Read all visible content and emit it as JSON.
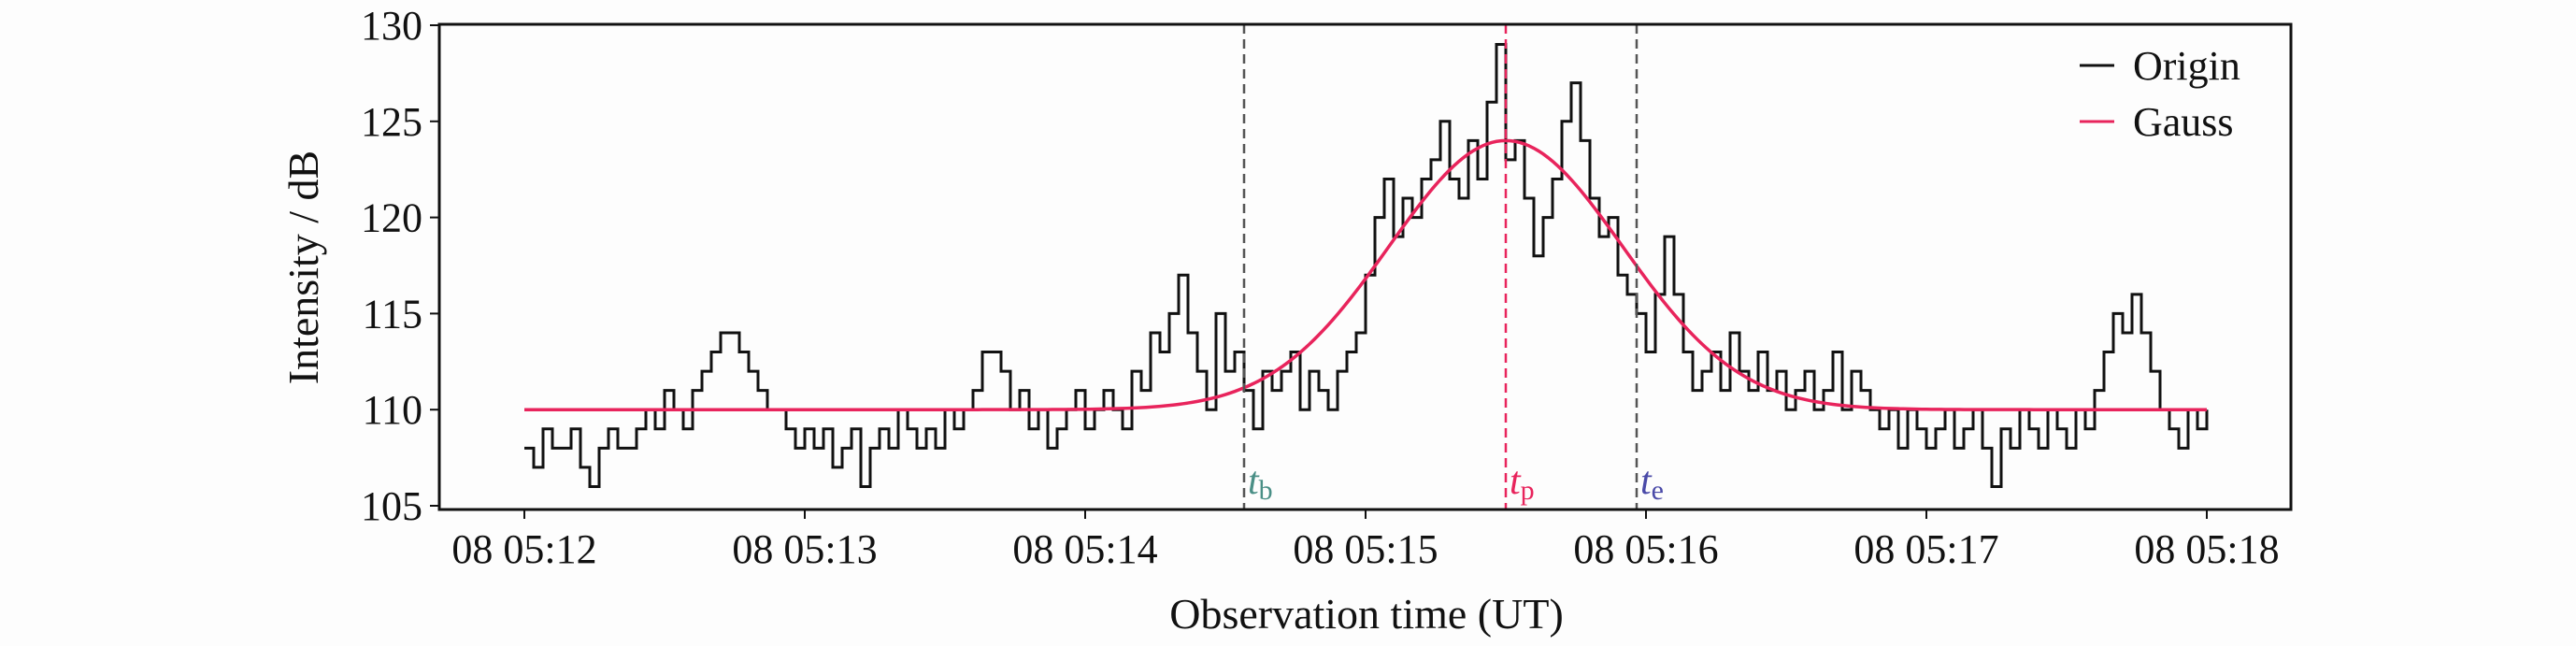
{
  "chart_data": {
    "type": "line",
    "xlabel": "Observation time (UT)",
    "ylabel": "Intensity / dB",
    "ylim": [
      105,
      130
    ],
    "yticks": [
      "105",
      "110",
      "115",
      "120",
      "125",
      "130"
    ],
    "xlim": [
      "05:12:00",
      "05:18:00"
    ],
    "xticks": [
      "08 05:12",
      "08 05:13",
      "08 05:14",
      "08 05:15",
      "08 05:16",
      "08 05:17",
      "08 05:18"
    ],
    "grid": false,
    "legend_placement": "top-right",
    "series": [
      {
        "name": "Origin",
        "color": "#111111",
        "style": "steps",
        "time_start": "05:12:00",
        "sample_interval_s": 2,
        "values": [
          108,
          107,
          109,
          108,
          108,
          109,
          107,
          106,
          108,
          109,
          108,
          108,
          109,
          110,
          109,
          111,
          110,
          109,
          111,
          112,
          113,
          114,
          114,
          113,
          112,
          111,
          110,
          110,
          109,
          108,
          109,
          108,
          109,
          107,
          108,
          109,
          106,
          108,
          109,
          108,
          110,
          109,
          108,
          109,
          108,
          110,
          109,
          110,
          111,
          113,
          113,
          112,
          110,
          111,
          109,
          110,
          108,
          109,
          110,
          111,
          109,
          110,
          111,
          110,
          109,
          112,
          111,
          114,
          113,
          115,
          117,
          114,
          112,
          110,
          115,
          112,
          113,
          111,
          109,
          112,
          111,
          112,
          113,
          110,
          112,
          111,
          110,
          112,
          113,
          114,
          117,
          120,
          122,
          119,
          121,
          120,
          122,
          123,
          125,
          122,
          121,
          124,
          122,
          126,
          129,
          123,
          124,
          121,
          118,
          120,
          122,
          125,
          127,
          124,
          121,
          119,
          120,
          117,
          116,
          115,
          113,
          116,
          119,
          116,
          113,
          111,
          112,
          113,
          111,
          114,
          112,
          111,
          113,
          111,
          112,
          110,
          111,
          112,
          110,
          111,
          113,
          110,
          112,
          111,
          110,
          109,
          110,
          108,
          110,
          109,
          108,
          109,
          110,
          108,
          109,
          110,
          108,
          106,
          109,
          108,
          110,
          109,
          108,
          110,
          109,
          108,
          110,
          109,
          111,
          113,
          115,
          114,
          116,
          114,
          112,
          110,
          109,
          108,
          110,
          109,
          110
        ]
      },
      {
        "name": "Gauss",
        "color": "#e8245c",
        "baseline": 110,
        "peak": 124,
        "peak_time": "05:15:30",
        "sigma_s": 25
      }
    ],
    "markers": [
      {
        "label": "t",
        "sub": "b",
        "time": "05:14:34",
        "color": "#4a8f86",
        "line_color": "#555555"
      },
      {
        "label": "t",
        "sub": "p",
        "time": "05:15:30",
        "color": "#e8245c",
        "line_color": "#e8245c"
      },
      {
        "label": "t",
        "sub": "e",
        "time": "05:15:58",
        "color": "#4a4aa8",
        "line_color": "#555555"
      }
    ]
  }
}
